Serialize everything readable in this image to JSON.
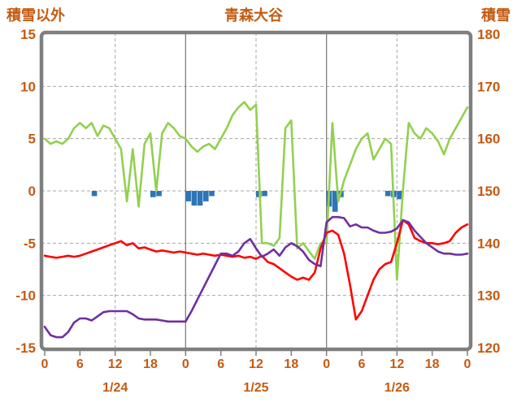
{
  "title": "青森大谷",
  "left_axis_label": "積雪以外",
  "right_axis_label": "積雪",
  "colors": {
    "text": "#C55A11",
    "frame": "#7F7F7F",
    "grid": "#A6A6A6",
    "day_line": "#808080",
    "green_line": "#92D050",
    "red_line": "#FF0000",
    "purple_line": "#7030A0",
    "bar": "#2E75B6"
  },
  "chart_data": {
    "type": "line",
    "title": "青森大谷",
    "x_unit": "hour",
    "x_range": [
      0,
      72
    ],
    "left_axis": {
      "label": "積雪以外",
      "min": -15,
      "max": 15,
      "ticks": [
        15,
        10,
        5,
        0,
        -5,
        -10,
        -15
      ]
    },
    "right_axis": {
      "label": "積雪",
      "min": 120,
      "max": 180,
      "ticks": [
        180,
        170,
        160,
        150,
        140,
        130,
        120
      ]
    },
    "x_ticks": {
      "hours": [
        0,
        6,
        12,
        18,
        24,
        30,
        36,
        42,
        48,
        54,
        60,
        66,
        72
      ],
      "labels": [
        "0",
        "6",
        "12",
        "18",
        "0",
        "6",
        "12",
        "18",
        "0",
        "6",
        "12",
        "18",
        "0"
      ]
    },
    "day_labels": [
      {
        "hour": 12,
        "label": "1/24"
      },
      {
        "hour": 36,
        "label": "1/25"
      },
      {
        "hour": 60,
        "label": "1/26"
      }
    ],
    "gridlines": {
      "horizontal_values": [
        10,
        5,
        0,
        -5,
        -10
      ],
      "vertical_dashed_hours": [
        12,
        36,
        60
      ],
      "vertical_solid_hours": [
        24,
        48
      ]
    },
    "series": [
      {
        "id": "snow-depth-green",
        "axis": "right",
        "color": "#92D050",
        "values": [
          160,
          159,
          159.5,
          159,
          160,
          162,
          163,
          162,
          163,
          160.5,
          162.5,
          162,
          160,
          158,
          148,
          158,
          147,
          159,
          161,
          150,
          161,
          163,
          162,
          160.5,
          160,
          158.5,
          157.5,
          158.5,
          159,
          158,
          160,
          162,
          164.5,
          166,
          167,
          165.5,
          166.5,
          140,
          140,
          139.5,
          141,
          162,
          163.5,
          139,
          140,
          138.5,
          137,
          140,
          140,
          163,
          148,
          152,
          155,
          158,
          160,
          161,
          156,
          158,
          160,
          159,
          133,
          150,
          163,
          161,
          160,
          162,
          161,
          159.5,
          157,
          160,
          162,
          164,
          166
        ]
      },
      {
        "id": "red-series",
        "axis": "left",
        "color": "#FF0000",
        "values": [
          -6.2,
          -6.3,
          -6.4,
          -6.3,
          -6.2,
          -6.3,
          -6.2,
          -6,
          -5.8,
          -5.6,
          -5.4,
          -5.2,
          -5,
          -4.8,
          -5.2,
          -5,
          -5.5,
          -5.4,
          -5.6,
          -5.8,
          -5.7,
          -5.8,
          -5.9,
          -5.8,
          -5.9,
          -6,
          -6.1,
          -6,
          -6.1,
          -6.2,
          -6.1,
          -6.2,
          -6.3,
          -6.2,
          -6.4,
          -6.3,
          -6.5,
          -6.2,
          -6.8,
          -7,
          -7.4,
          -7.8,
          -8.2,
          -8.5,
          -8.3,
          -8.5,
          -7.8,
          -5.5,
          -4,
          -3.8,
          -4.2,
          -6,
          -9,
          -12.3,
          -11.5,
          -10,
          -8.5,
          -7.5,
          -7,
          -6.8,
          -5,
          -2.8,
          -3.2,
          -4.5,
          -4.8,
          -5,
          -5,
          -5.1,
          -5,
          -4.8,
          -4,
          -3.5,
          -3.2
        ]
      },
      {
        "id": "purple-series",
        "axis": "left",
        "color": "#7030A0",
        "values": [
          -13,
          -13.8,
          -14,
          -14,
          -13.5,
          -12.6,
          -12.2,
          -12.2,
          -12.4,
          -12,
          -11.6,
          -11.5,
          -11.5,
          -11.5,
          -11.5,
          -11.8,
          -12.2,
          -12.3,
          -12.3,
          -12.3,
          -12.4,
          -12.5,
          -12.5,
          -12.5,
          -12.5,
          -11.5,
          -10.4,
          -9.3,
          -8.2,
          -7.1,
          -6,
          -6,
          -6.2,
          -5.8,
          -5,
          -4.6,
          -5.5,
          -6.3,
          -6,
          -5.6,
          -6.2,
          -5.4,
          -5,
          -5.3,
          -5.8,
          -6.6,
          -7,
          -7.2,
          -3,
          -2.5,
          -2.5,
          -2.6,
          -3.4,
          -3.2,
          -3.5,
          -3.5,
          -3.8,
          -4,
          -4,
          -3.9,
          -3.6,
          -2.8,
          -3,
          -3.8,
          -4.4,
          -5,
          -5.4,
          -5.8,
          -6,
          -6,
          -6.1,
          -6.1,
          -6
        ]
      }
    ],
    "bars": {
      "id": "blue-bars",
      "axis": "left",
      "color": "#2E75B6",
      "points": [
        {
          "hour": 8,
          "value": -0.5
        },
        {
          "hour": 18,
          "value": -0.6
        },
        {
          "hour": 19,
          "value": -0.5
        },
        {
          "hour": 24,
          "value": -1.0
        },
        {
          "hour": 25,
          "value": -1.4
        },
        {
          "hour": 26,
          "value": -1.4
        },
        {
          "hour": 27,
          "value": -1.0
        },
        {
          "hour": 28,
          "value": -0.5
        },
        {
          "hour": 36,
          "value": -0.6
        },
        {
          "hour": 37,
          "value": -0.5
        },
        {
          "hour": 48,
          "value": -1.5
        },
        {
          "hour": 49,
          "value": -2.0
        },
        {
          "hour": 50,
          "value": -0.6
        },
        {
          "hour": 58,
          "value": -0.5
        },
        {
          "hour": 59,
          "value": -0.6
        },
        {
          "hour": 60,
          "value": -0.8
        }
      ]
    }
  }
}
